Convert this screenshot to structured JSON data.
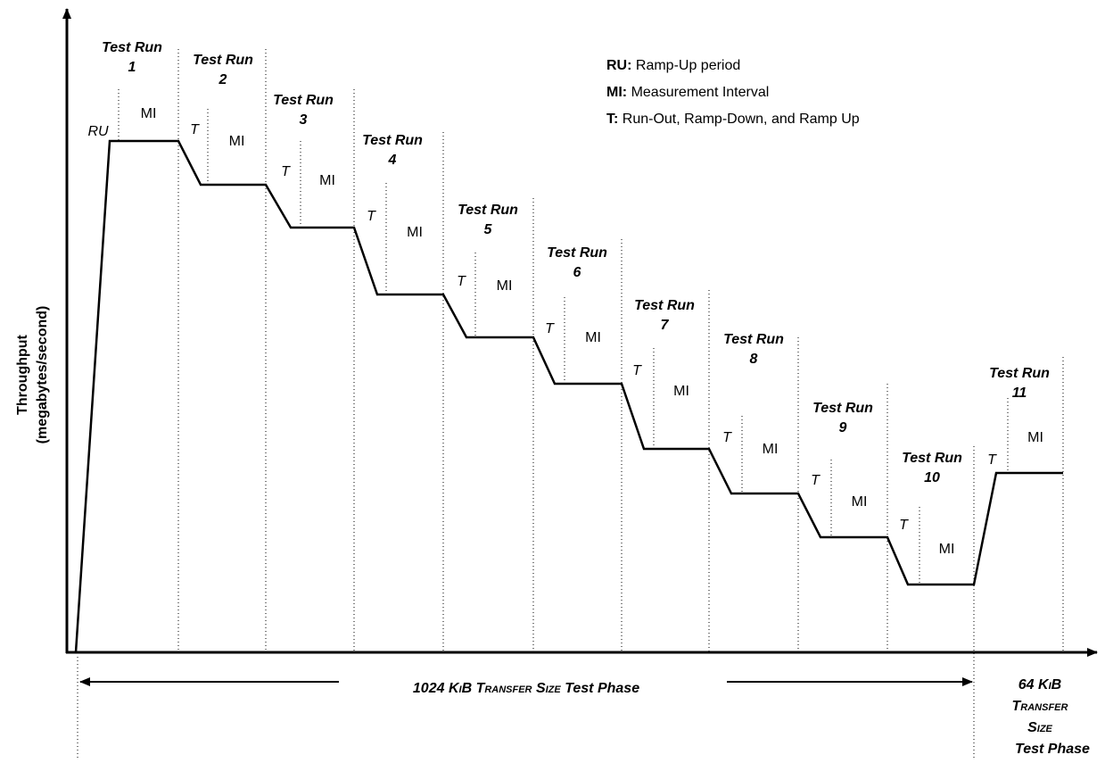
{
  "y_axis": {
    "title": "Throughput",
    "subtitle": "(megabytes/second)"
  },
  "legend": [
    {
      "key": "RU:",
      "text": "Ramp-Up period"
    },
    {
      "key": "MI:",
      "text": "Measurement Interval"
    },
    {
      "key": "T:",
      "text": "Run-Out, Ramp-Down, and Ramp Up"
    }
  ],
  "runs": [
    {
      "title": "Test Run",
      "number": "1",
      "lead": "RU",
      "interval": "MI"
    },
    {
      "title": "Test Run",
      "number": "2",
      "lead": "T",
      "interval": "MI"
    },
    {
      "title": "Test Run",
      "number": "3",
      "lead": "T",
      "interval": "MI"
    },
    {
      "title": "Test Run",
      "number": "4",
      "lead": "T",
      "interval": "MI"
    },
    {
      "title": "Test Run",
      "number": "5",
      "lead": "T",
      "interval": "MI"
    },
    {
      "title": "Test Run",
      "number": "6",
      "lead": "T",
      "interval": "MI"
    },
    {
      "title": "Test Run",
      "number": "7",
      "lead": "T",
      "interval": "MI"
    },
    {
      "title": "Test Run",
      "number": "8",
      "lead": "T",
      "interval": "MI"
    },
    {
      "title": "Test Run",
      "number": "9",
      "lead": "T",
      "interval": "MI"
    },
    {
      "title": "Test Run",
      "number": "10",
      "lead": "T",
      "interval": "MI"
    },
    {
      "title": "Test Run",
      "number": "11",
      "lead": "T",
      "interval": "MI"
    }
  ],
  "phases": [
    {
      "size": "1024",
      "unit": "KiB Transfer Size",
      "label": "Test Phase"
    },
    {
      "size": "64",
      "unit_lines": [
        "KiB",
        "Transfer",
        "Size"
      ],
      "label": "Test Phase"
    }
  ]
}
